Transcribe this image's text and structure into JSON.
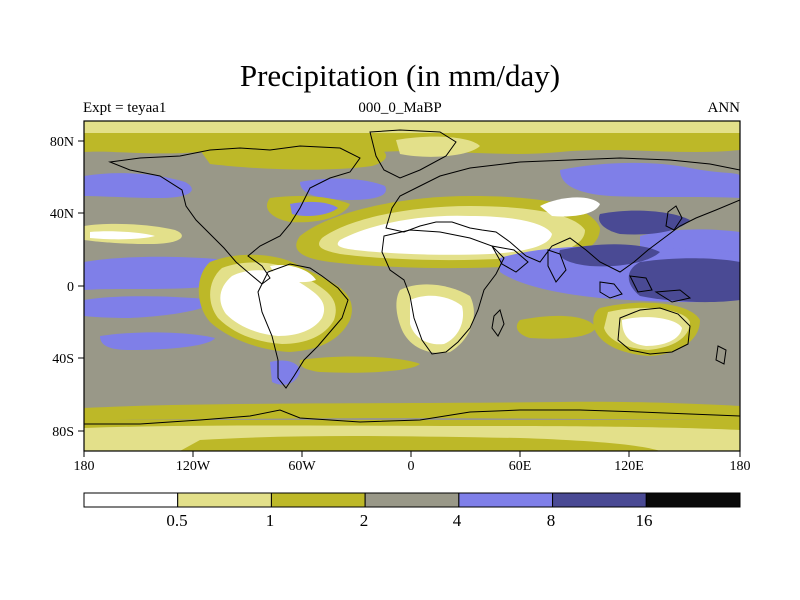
{
  "title": "Precipitation (in mm/day)",
  "subtitle_left": "Expt = teyaa1",
  "subtitle_center": "000_0_MaBP",
  "subtitle_right": "ANN",
  "lon_ticks": [
    "180",
    "120W",
    "60W",
    "0",
    "60E",
    "120E",
    "180"
  ],
  "lat_ticks": [
    "80N",
    "40N",
    "0",
    "40S",
    "80S"
  ],
  "colorbar": {
    "labels": [
      "0.5",
      "1",
      "2",
      "4",
      "8",
      "16"
    ],
    "colors": [
      "#ffffff",
      "#e3e08a",
      "#bdb828",
      "#999888",
      "#7f7fe8",
      "#4a4a94",
      "#0a0a0a"
    ]
  },
  "palette": {
    "white": "#ffffff",
    "light": "#e3e08a",
    "olive": "#bdb828",
    "gray": "#999888",
    "blue": "#7f7fe8",
    "navy": "#4a4a94"
  }
}
